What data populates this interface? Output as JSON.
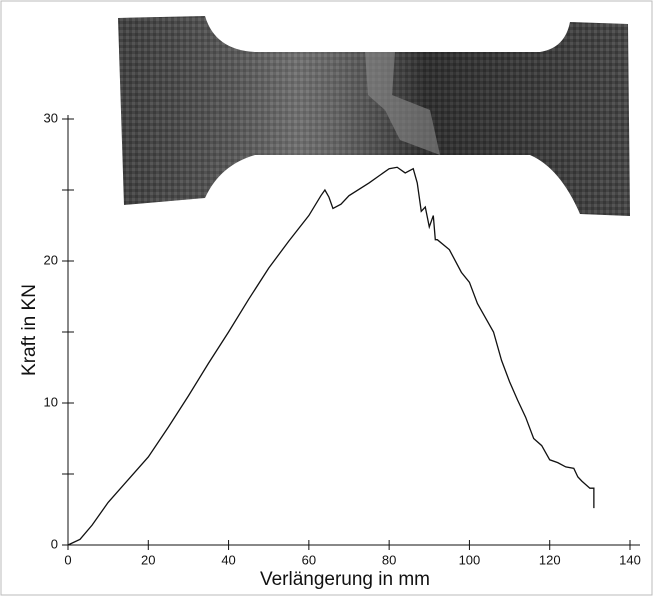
{
  "chart_data": {
    "type": "line",
    "xlabel": "Verlängerung in mm",
    "ylabel": "Kraft in KN",
    "xlim": [
      0,
      140
    ],
    "xticks": [
      0,
      20,
      40,
      60,
      80,
      100,
      120,
      140
    ],
    "ylim": [
      0,
      30
    ],
    "yticks": [
      0,
      10,
      20,
      30
    ],
    "yminorticks": [
      5,
      15,
      25
    ],
    "series": [
      {
        "color": "#111111",
        "x": [
          0,
          3,
          6,
          10,
          15,
          20,
          25,
          30,
          35,
          40,
          45,
          50,
          55,
          60,
          63,
          64,
          65,
          66,
          68,
          70,
          75,
          80,
          82,
          84,
          86,
          87,
          88,
          89,
          90,
          91,
          91.5,
          92,
          95,
          98,
          100,
          102,
          104,
          106,
          108,
          110,
          112,
          114,
          116,
          118,
          120,
          122,
          124,
          126,
          127,
          128,
          130,
          131,
          131
        ],
        "values": [
          0,
          0.4,
          1.4,
          3,
          4.6,
          6.2,
          8.3,
          10.5,
          12.8,
          15,
          17.3,
          19.5,
          21.4,
          23.2,
          24.6,
          25,
          24.5,
          23.7,
          24,
          24.6,
          25.5,
          26.5,
          26.6,
          26.2,
          26.5,
          25.5,
          23.5,
          23.8,
          22.4,
          23.2,
          21.5,
          21.5,
          20.8,
          19.2,
          18.5,
          17,
          16,
          15,
          13,
          11.5,
          10.2,
          9,
          7.5,
          7,
          6,
          5.8,
          5.5,
          5.4,
          4.8,
          4.5,
          4,
          4,
          2.6
        ]
      }
    ]
  }
}
